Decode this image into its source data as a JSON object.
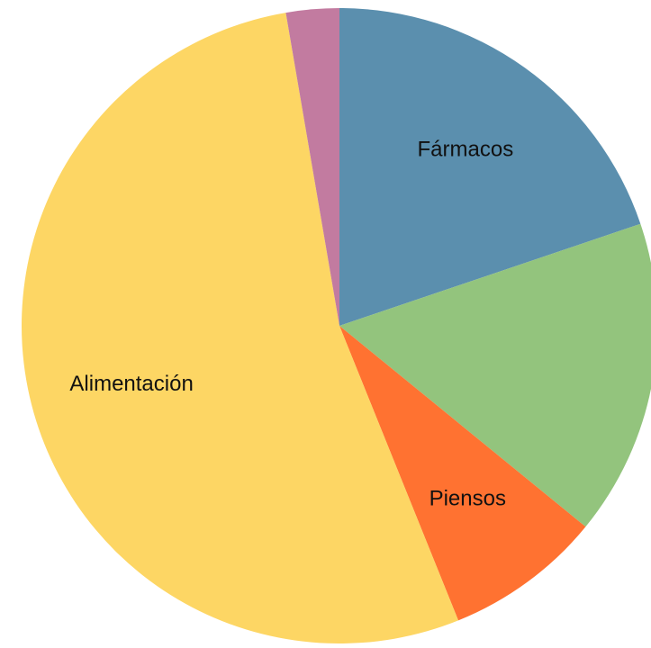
{
  "chart_data": {
    "type": "pie",
    "categories": [
      "Fármacos",
      null,
      "Piensos",
      "Alimentación",
      null
    ],
    "values": [
      19.8,
      16.1,
      8.0,
      53.4,
      2.7
    ],
    "colors": [
      "#5b8fae",
      "#93c47d",
      "#ff7231",
      "#fdd664",
      "#c27ba0"
    ]
  }
}
